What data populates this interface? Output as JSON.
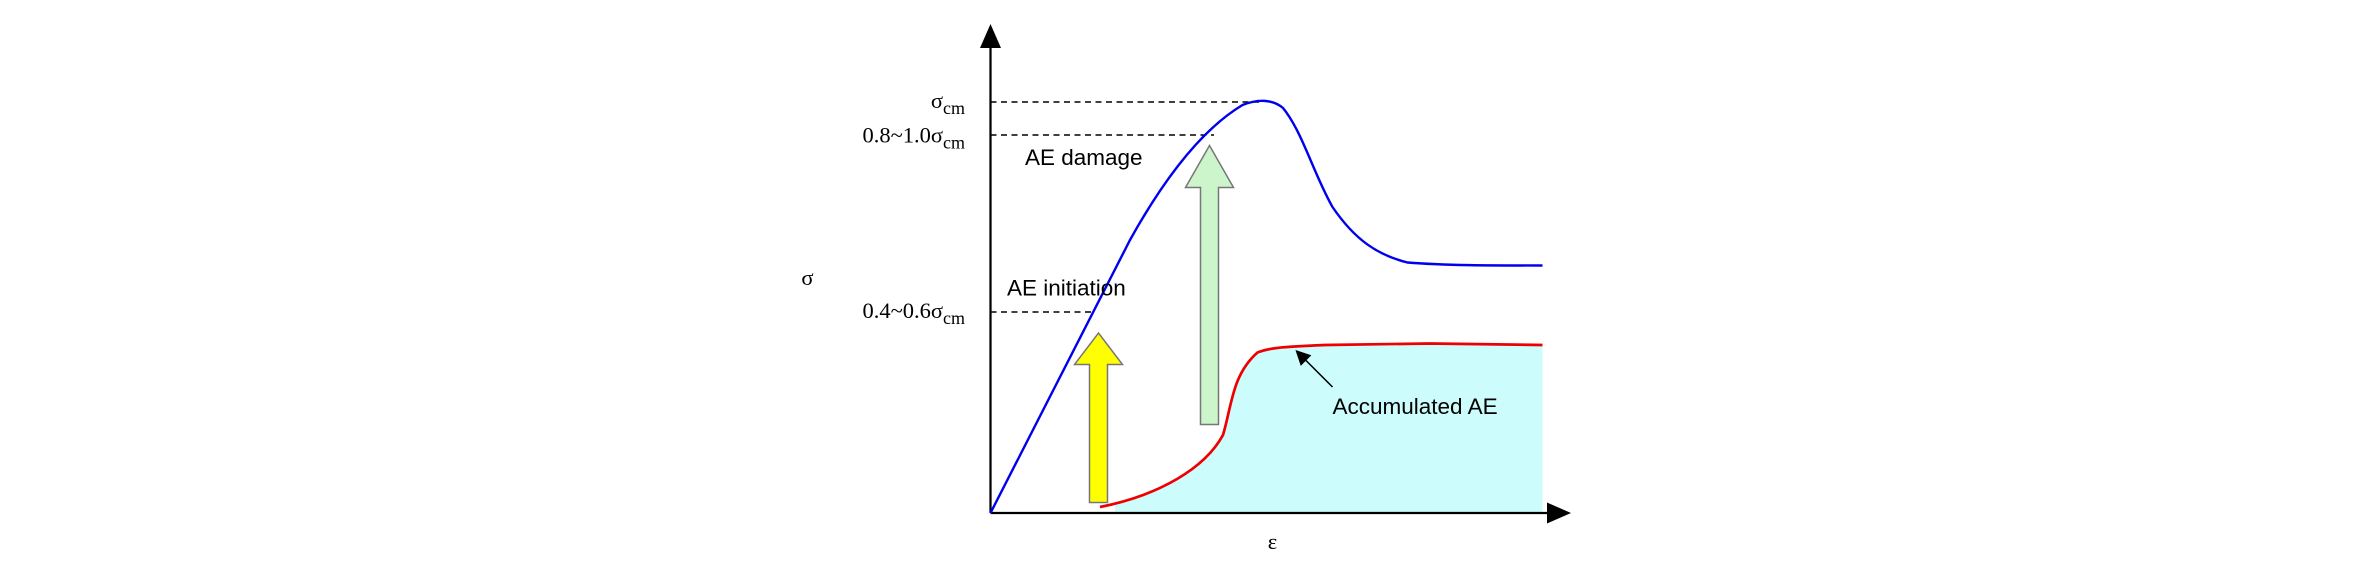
{
  "y_axis": {
    "label": "σ"
  },
  "x_axis": {
    "label": "ε"
  },
  "levels": [
    {
      "main": "σ",
      "sub": "cm"
    },
    {
      "main": "0.8~1.0σ",
      "sub": "cm"
    },
    {
      "main": "0.4~0.6σ",
      "sub": "cm"
    }
  ],
  "annotations": [
    "AE damage",
    "AE initiation",
    "Accumulated AE"
  ]
}
